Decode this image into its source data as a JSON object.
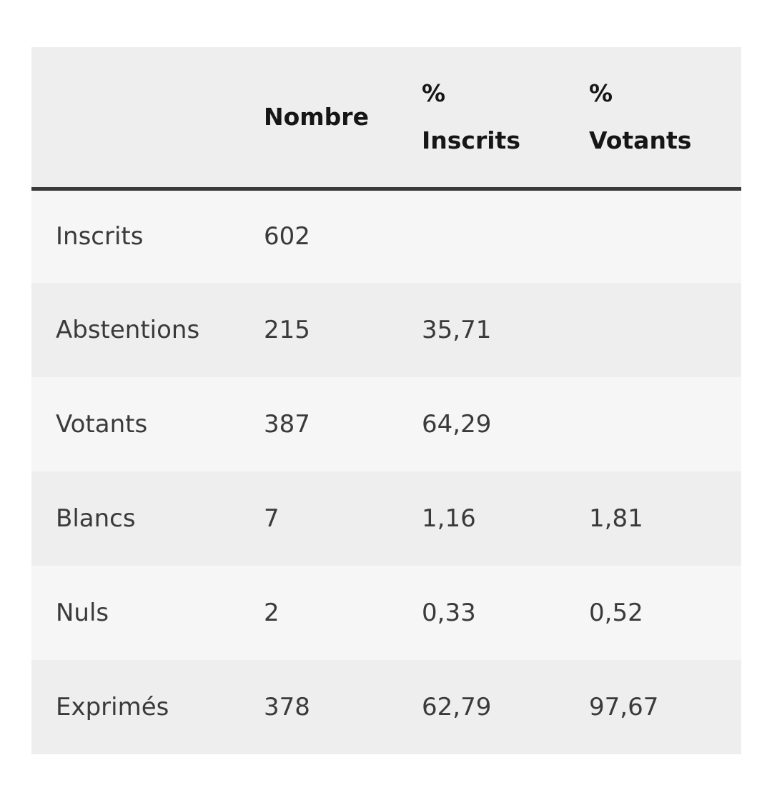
{
  "header": {
    "col1": "",
    "col2": "Nombre",
    "col3": [
      "%",
      "Inscrits"
    ],
    "col4": [
      "%",
      "Votants"
    ]
  },
  "rows": [
    {
      "label": "Inscrits",
      "nombre": "602",
      "pct_inscrits": "",
      "pct_votants": ""
    },
    {
      "label": "Abstentions",
      "nombre": "215",
      "pct_inscrits": "35,71",
      "pct_votants": ""
    },
    {
      "label": "Votants",
      "nombre": "387",
      "pct_inscrits": "64,29",
      "pct_votants": ""
    },
    {
      "label": "Blancs",
      "nombre": "7",
      "pct_inscrits": "1,16",
      "pct_votants": "1,81"
    },
    {
      "label": "Nuls",
      "nombre": "2",
      "pct_inscrits": "0,33",
      "pct_votants": "0,52"
    },
    {
      "label": "Exprimés",
      "nombre": "378",
      "pct_inscrits": "62,79",
      "pct_votants": "97,67"
    }
  ]
}
